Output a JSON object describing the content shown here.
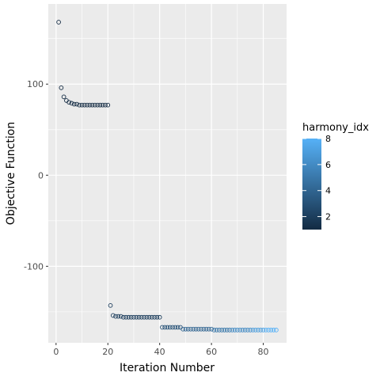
{
  "chart_data": {
    "type": "scatter",
    "title": "",
    "xlabel": "Iteration Number",
    "ylabel": "Objective Function",
    "xlim": [
      -3,
      89
    ],
    "ylim": [
      -184,
      188
    ],
    "x_ticks": [
      0,
      20,
      40,
      60,
      80
    ],
    "y_ticks": [
      -100,
      0,
      100
    ],
    "grid": true,
    "legend": {
      "title": "harmony_idx",
      "position": "right",
      "type": "colorbar",
      "range": [
        1,
        8
      ],
      "ticks": [
        2,
        4,
        6,
        8
      ],
      "colors": [
        "#132B43",
        "#56B1F7"
      ]
    },
    "series": [
      {
        "x": [
          1,
          2,
          3,
          4,
          5,
          6,
          7,
          8,
          9,
          10,
          11,
          12,
          13,
          14,
          15,
          16,
          17,
          18,
          19,
          20,
          21,
          22,
          23,
          24,
          25,
          26,
          27,
          28,
          29,
          30,
          31,
          32,
          33,
          34,
          35,
          36,
          37,
          38,
          39,
          40,
          41,
          42,
          43,
          44,
          45,
          46,
          47,
          48,
          49,
          50,
          51,
          52,
          53,
          54,
          55,
          56,
          57,
          58,
          59,
          60,
          61,
          62,
          63,
          64,
          65,
          66,
          67,
          68,
          69,
          70,
          71,
          72,
          73,
          74,
          75,
          76,
          77,
          78,
          79,
          80,
          81,
          82,
          83,
          84,
          85
        ],
        "y": [
          168,
          96,
          86,
          82,
          80,
          79,
          78,
          78,
          77,
          77,
          77,
          77,
          77,
          77,
          77,
          77,
          77,
          77,
          77,
          77,
          -143,
          -154,
          -155,
          -155,
          -155,
          -156,
          -156,
          -156,
          -156,
          -156,
          -156,
          -156,
          -156,
          -156,
          -156,
          -156,
          -156,
          -156,
          -156,
          -156,
          -167,
          -167,
          -167,
          -167,
          -167,
          -167,
          -167,
          -167,
          -169,
          -169,
          -169,
          -169,
          -169,
          -169,
          -169,
          -169,
          -169,
          -169,
          -169,
          -169,
          -170,
          -170,
          -170,
          -170,
          -170,
          -170,
          -170,
          -170,
          -170,
          -170,
          -170,
          -170,
          -170,
          -170,
          -170,
          -170,
          -170,
          -170,
          -170,
          -170,
          -170,
          -170,
          -170,
          -170,
          -170
        ],
        "harmony_idx": [
          1,
          1,
          1,
          1,
          1,
          1,
          1,
          1,
          1,
          1,
          1,
          1,
          1,
          1,
          1,
          1,
          1,
          1,
          1,
          1,
          2,
          2,
          2,
          2,
          2,
          2,
          2,
          2,
          2,
          2,
          2,
          2,
          2,
          2,
          2,
          2,
          2,
          2,
          2,
          2,
          3,
          3,
          3,
          3,
          3,
          3,
          3,
          3,
          4,
          4,
          4,
          4,
          4,
          4,
          4,
          4,
          4,
          4,
          4,
          4,
          5,
          5,
          5,
          5,
          5,
          5,
          5,
          6,
          6,
          6,
          6,
          6,
          6,
          6,
          6,
          7,
          7,
          7,
          7,
          7,
          8,
          8,
          8,
          8,
          8
        ]
      }
    ]
  }
}
